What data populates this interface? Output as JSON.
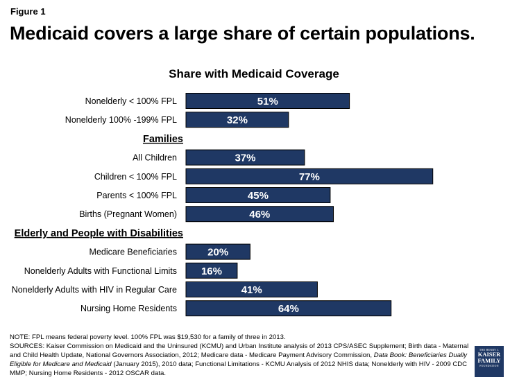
{
  "figure_label": "Figure 1",
  "title": "Medicaid covers a large share of certain populations.",
  "chart_data": {
    "type": "bar",
    "orientation": "horizontal",
    "title": "Share with Medicaid Coverage",
    "xlim": [
      0,
      100
    ],
    "grid": false,
    "value_suffix": "%",
    "bar_color": "#1f3864",
    "label_color": "#ffffff",
    "groups": [
      {
        "heading": "",
        "items": [
          {
            "label": "Nonelderly < 100% FPL",
            "value": 51
          },
          {
            "label": "Nonelderly 100% -199% FPL",
            "value": 32
          }
        ]
      },
      {
        "heading": "Families",
        "items": [
          {
            "label": "All Children",
            "value": 37
          },
          {
            "label": "Children < 100% FPL",
            "value": 77
          },
          {
            "label": "Parents < 100% FPL",
            "value": 45
          },
          {
            "label": "Births (Pregnant Women)",
            "value": 46
          }
        ]
      },
      {
        "heading": "Elderly and People with Disabilities",
        "items": [
          {
            "label": "Medicare Beneficiaries",
            "value": 20
          },
          {
            "label": "Nonelderly Adults with Functional Limits",
            "value": 16
          },
          {
            "label": "Nonelderly Adults with HIV in Regular Care",
            "value": 41
          },
          {
            "label": "Nursing Home Residents",
            "value": 64
          }
        ]
      }
    ]
  },
  "footnote": {
    "note": "NOTE: FPL means federal poverty level. 100% FPL was $19,530 for a family of three in 2013.",
    "sources_part1": "SOURCES: Kaiser Commission on Medicaid and the Uninsured (KCMU) and Urban Institute analysis of 2013 CPS/ASEC Supplement; Birth data - Maternal and Child Health Update, National Governors Association, 2012; Medicare data - Medicare Payment Advisory Commission, ",
    "sources_italic": "Data Book: Beneficiaries Dually Eligible for Medicare and Medicaid",
    "sources_part2": " (January 2015), 2010 data; Functional Limitations - KCMU Analysis of 2012 NHIS data; Nonelderly with HIV - 2009 CDC MMP; Nursing Home Residents - 2012 OSCAR data."
  },
  "logo": {
    "top_line": "THE HENRY J.",
    "line1": "KAISER",
    "line2": "FAMILY",
    "bottom_line": "FOUNDATION"
  }
}
